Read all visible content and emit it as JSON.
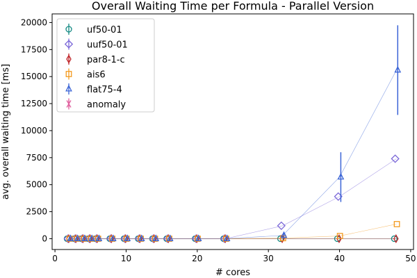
{
  "chart_data": {
    "type": "scatter",
    "title": "Overall Waiting Time per Formula - Parallel Version",
    "xlabel": "# cores",
    "ylabel": "avg. overall waiting time [ms]",
    "xlim": [
      -0.4,
      50.4
    ],
    "ylim": [
      -1000,
      20800
    ],
    "x_ticks": [
      0,
      10,
      20,
      30,
      40,
      50
    ],
    "y_ticks": [
      0,
      2500,
      5000,
      7500,
      10000,
      12500,
      15000,
      17500,
      20000
    ],
    "grid": false,
    "legend_position": "upper-left",
    "series": [
      {
        "name": "uf50-01",
        "marker": "circle",
        "color": "#138a83",
        "x": [
          2,
          3,
          4,
          5,
          6,
          8,
          10,
          12,
          14,
          16,
          20,
          24,
          32,
          40,
          48
        ],
        "y": [
          0,
          0,
          0,
          0,
          0,
          0,
          0,
          0,
          0,
          0,
          0,
          0,
          0,
          0,
          0
        ],
        "err": [
          0,
          0,
          0,
          0,
          0,
          0,
          0,
          0,
          0,
          0,
          0,
          0,
          0,
          0,
          0
        ]
      },
      {
        "name": "uuf50-01",
        "marker": "diamond",
        "color": "#7b68d8",
        "x": [
          2,
          3,
          4,
          5,
          6,
          8,
          10,
          12,
          14,
          16,
          20,
          24,
          32,
          40,
          48
        ],
        "y": [
          0,
          0,
          0,
          0,
          0,
          0,
          0,
          0,
          0,
          0,
          0,
          0,
          1200,
          3900,
          7400
        ],
        "err": [
          0,
          0,
          0,
          0,
          0,
          0,
          0,
          0,
          0,
          0,
          0,
          0,
          0,
          0,
          0
        ]
      },
      {
        "name": "par8-1-c",
        "marker": "thin_diamond",
        "color": "#c0262a",
        "x": [
          2,
          3,
          4,
          5,
          6,
          8,
          10,
          12,
          14,
          16,
          20,
          24,
          32,
          40,
          48
        ],
        "y": [
          0,
          0,
          0,
          0,
          0,
          0,
          0,
          0,
          0,
          0,
          0,
          0,
          0,
          0,
          0
        ],
        "err": [
          0,
          0,
          0,
          0,
          0,
          0,
          0,
          0,
          0,
          0,
          0,
          0,
          0,
          0,
          0
        ]
      },
      {
        "name": "ais6",
        "marker": "square",
        "color": "#f39a1e",
        "x": [
          2,
          3,
          4,
          5,
          6,
          8,
          10,
          12,
          14,
          16,
          20,
          24,
          32,
          40,
          48
        ],
        "y": [
          0,
          0,
          0,
          0,
          0,
          0,
          0,
          0,
          0,
          0,
          0,
          0,
          50,
          250,
          1350
        ],
        "err": [
          0,
          0,
          0,
          0,
          0,
          0,
          0,
          0,
          0,
          0,
          0,
          0,
          0,
          0,
          0
        ]
      },
      {
        "name": "flat75-4",
        "marker": "triangle",
        "color": "#3a64d6",
        "x": [
          2,
          3,
          4,
          5,
          6,
          8,
          10,
          12,
          14,
          16,
          20,
          24,
          32,
          40,
          48
        ],
        "y": [
          0,
          0,
          0,
          0,
          0,
          0,
          0,
          0,
          0,
          0,
          0,
          0,
          300,
          5700,
          15600
        ],
        "err": [
          0,
          0,
          0,
          0,
          0,
          0,
          0,
          0,
          0,
          0,
          0,
          0,
          250,
          2300,
          4150
        ]
      },
      {
        "name": "anomaly",
        "marker": "x",
        "color": "#e0609e",
        "x": [],
        "y": [],
        "err": []
      }
    ]
  }
}
